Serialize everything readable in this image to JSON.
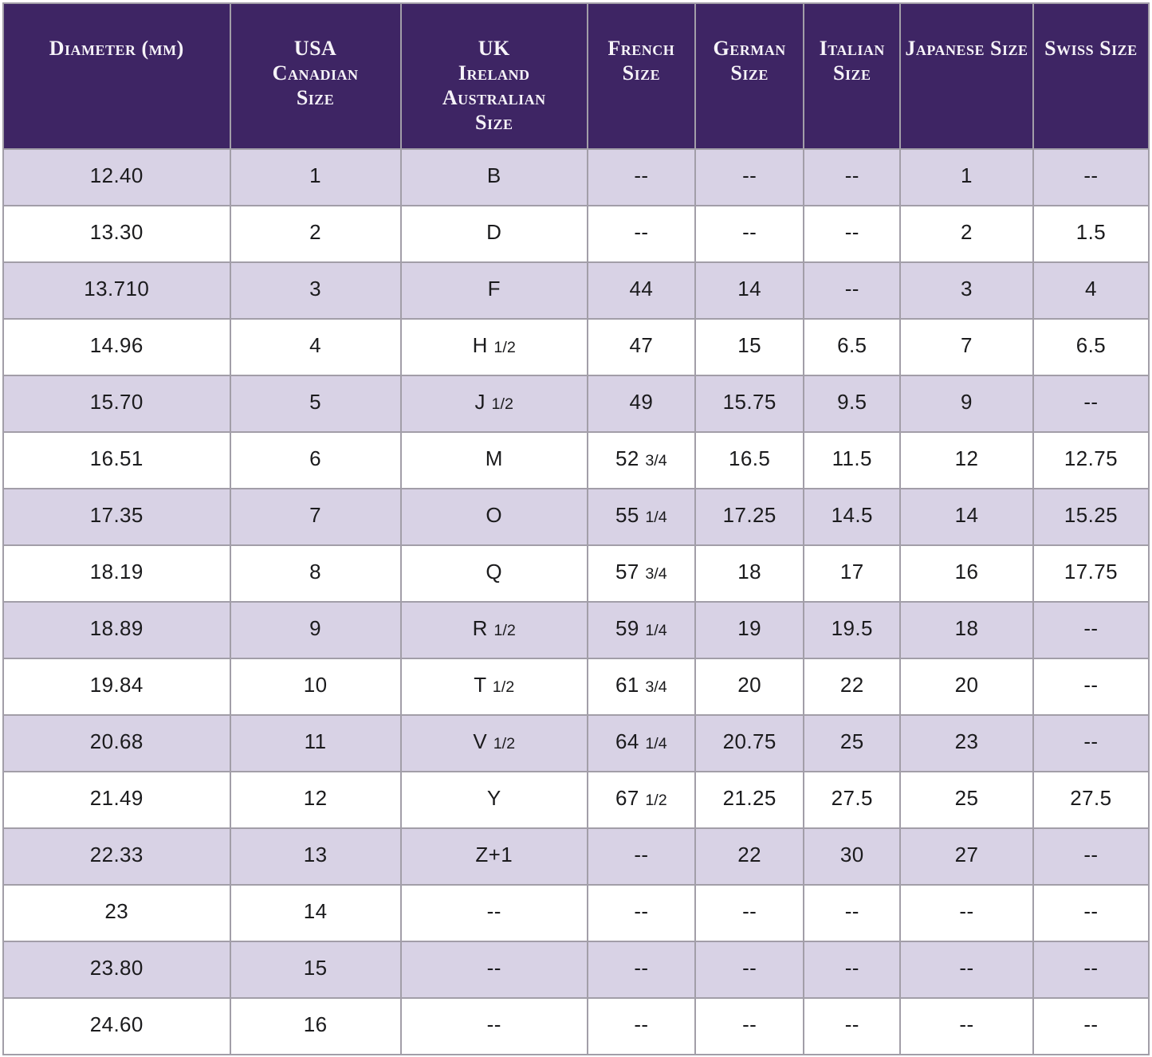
{
  "chart_data": {
    "type": "table",
    "empty_marker": "--",
    "columns": [
      {
        "key": "diameter-mm",
        "label": "Diameter (mm)",
        "lines": [
          "Diameter (mm)"
        ]
      },
      {
        "key": "usa-canadian",
        "label": "USA Canadian Size",
        "lines": [
          "USA",
          "Canadian",
          "Size"
        ]
      },
      {
        "key": "uk-ireland-australian",
        "label": "UK Ireland Australian Size",
        "lines": [
          "UK",
          "Ireland",
          "Australian",
          "Size"
        ]
      },
      {
        "key": "french",
        "label": "French Size",
        "lines": [
          "French",
          "Size"
        ]
      },
      {
        "key": "german",
        "label": "German Size",
        "lines": [
          "German",
          "Size"
        ]
      },
      {
        "key": "italian",
        "label": "Italian Size",
        "lines": [
          "Italian",
          "Size"
        ]
      },
      {
        "key": "japanese",
        "label": "Japanese Size",
        "lines": [
          "Japanese Size"
        ]
      },
      {
        "key": "swiss",
        "label": "Swiss Size",
        "lines": [
          "Swiss Size"
        ]
      }
    ],
    "rows": [
      [
        "12.40",
        "1",
        "B",
        "--",
        "--",
        "--",
        "1",
        "--"
      ],
      [
        "13.30",
        "2",
        "D",
        "--",
        "--",
        "--",
        "2",
        "1.5"
      ],
      [
        "13.710",
        "3",
        "F",
        "44",
        "14",
        "--",
        "3",
        "4"
      ],
      [
        "14.96",
        "4",
        "H 1/2",
        "47",
        "15",
        "6.5",
        "7",
        "6.5"
      ],
      [
        "15.70",
        "5",
        "J 1/2",
        "49",
        "15.75",
        "9.5",
        "9",
        "--"
      ],
      [
        "16.51",
        "6",
        "M",
        "52 3/4",
        "16.5",
        "11.5",
        "12",
        "12.75"
      ],
      [
        "17.35",
        "7",
        "O",
        "55 1/4",
        "17.25",
        "14.5",
        "14",
        "15.25"
      ],
      [
        "18.19",
        "8",
        "Q",
        "57 3/4",
        "18",
        "17",
        "16",
        "17.75"
      ],
      [
        "18.89",
        "9",
        "R 1/2",
        "59 1/4",
        "19",
        "19.5",
        "18",
        "--"
      ],
      [
        "19.84",
        "10",
        "T 1/2",
        "61 3/4",
        "20",
        "22",
        "20",
        "--"
      ],
      [
        "20.68",
        "11",
        "V 1/2",
        "64 1/4",
        "20.75",
        "25",
        "23",
        "--"
      ],
      [
        "21.49",
        "12",
        "Y",
        "67 1/2",
        "21.25",
        "27.5",
        "25",
        "27.5"
      ],
      [
        "22.33",
        "13",
        "Z+1",
        "--",
        "22",
        "30",
        "27",
        "--"
      ],
      [
        "23",
        "14",
        "--",
        "--",
        "--",
        "--",
        "--",
        "--"
      ],
      [
        "23.80",
        "15",
        "--",
        "--",
        "--",
        "--",
        "--",
        "--"
      ],
      [
        "24.60",
        "16",
        "--",
        "--",
        "--",
        "--",
        "--",
        "--"
      ]
    ]
  },
  "colors": {
    "header_bg": "#3e2564",
    "header_text": "#f6f3f8",
    "row_alt_bg": "#d8d2e5",
    "row_bg": "#ffffff",
    "border": "#a29ea8",
    "outer_border": "#f2f1f4",
    "cell_text": "#1b1b1d"
  }
}
